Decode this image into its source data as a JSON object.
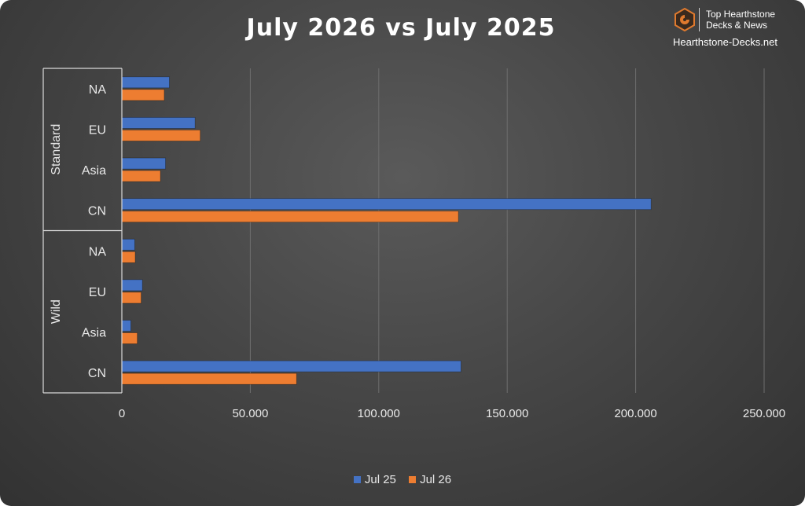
{
  "chart_data": {
    "type": "bar",
    "orientation": "horizontal",
    "title": "July 2026 vs July 2025",
    "xlim": [
      0,
      250000
    ],
    "x_ticks": [
      "0",
      "50.000",
      "100.000",
      "150.000",
      "200.000",
      "250.000"
    ],
    "grid": true,
    "legend_position": "bottom",
    "groups": [
      {
        "name": "Standard",
        "categories": [
          "NA",
          "EU",
          "Asia",
          "CN"
        ]
      },
      {
        "name": "Wild",
        "categories": [
          "NA",
          "EU",
          "Asia",
          "CN"
        ]
      }
    ],
    "series": [
      {
        "name": "Jul 25",
        "color": "#4472C4",
        "values": [
          18500,
          28500,
          17000,
          206000,
          5000,
          8000,
          3500,
          132000
        ]
      },
      {
        "name": "Jul 26",
        "color": "#ED7D31",
        "values": [
          16500,
          30500,
          15000,
          131000,
          5200,
          7500,
          6000,
          68000
        ]
      }
    ]
  },
  "brand": {
    "line1": "Top Hearthstone",
    "line2": "Decks & News",
    "site": "Hearthstone-Decks.net",
    "logo_icon": "hexagon-logo-icon",
    "accent": "#E07A2E"
  }
}
